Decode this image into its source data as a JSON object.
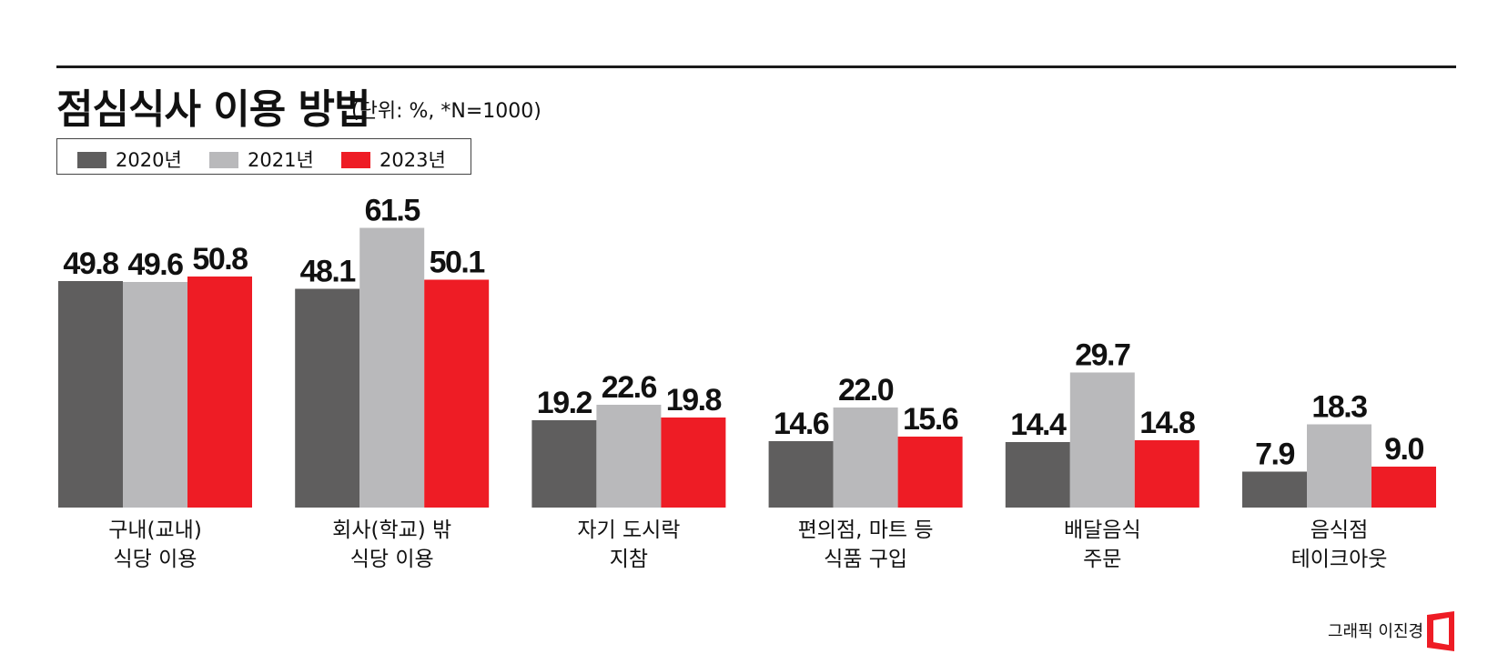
{
  "header": {
    "title": "점심식사 이용 방법",
    "subtitle": "(단위: %, *N=1000)"
  },
  "credit": "그래픽 이진경",
  "colors": {
    "series_2020": "#5f5e5e",
    "series_2021": "#b9b9bb",
    "series_2023": "#ee1c25"
  },
  "chart_data": {
    "type": "bar",
    "title": "점심식사 이용 방법",
    "ylabel": "",
    "ylim": [
      0,
      70
    ],
    "grid": false,
    "legend_position": "top-left",
    "categories": [
      [
        "구내(교내)",
        "식당 이용"
      ],
      [
        "회사(학교) 밖",
        "식당 이용"
      ],
      [
        "자기 도시락",
        "지참"
      ],
      [
        "편의점, 마트 등",
        "식품 구입"
      ],
      [
        "배달음식",
        "주문"
      ],
      [
        "음식점",
        "테이크아웃"
      ]
    ],
    "series": [
      {
        "name": "2020년",
        "color": "#5f5e5e",
        "values": [
          49.8,
          48.1,
          19.2,
          14.6,
          14.4,
          7.9
        ]
      },
      {
        "name": "2021년",
        "color": "#b9b9bb",
        "values": [
          49.6,
          61.5,
          22.6,
          22.0,
          29.7,
          18.3
        ]
      },
      {
        "name": "2023년",
        "color": "#ee1c25",
        "values": [
          50.8,
          50.1,
          19.8,
          15.6,
          14.8,
          9.0
        ]
      }
    ]
  }
}
